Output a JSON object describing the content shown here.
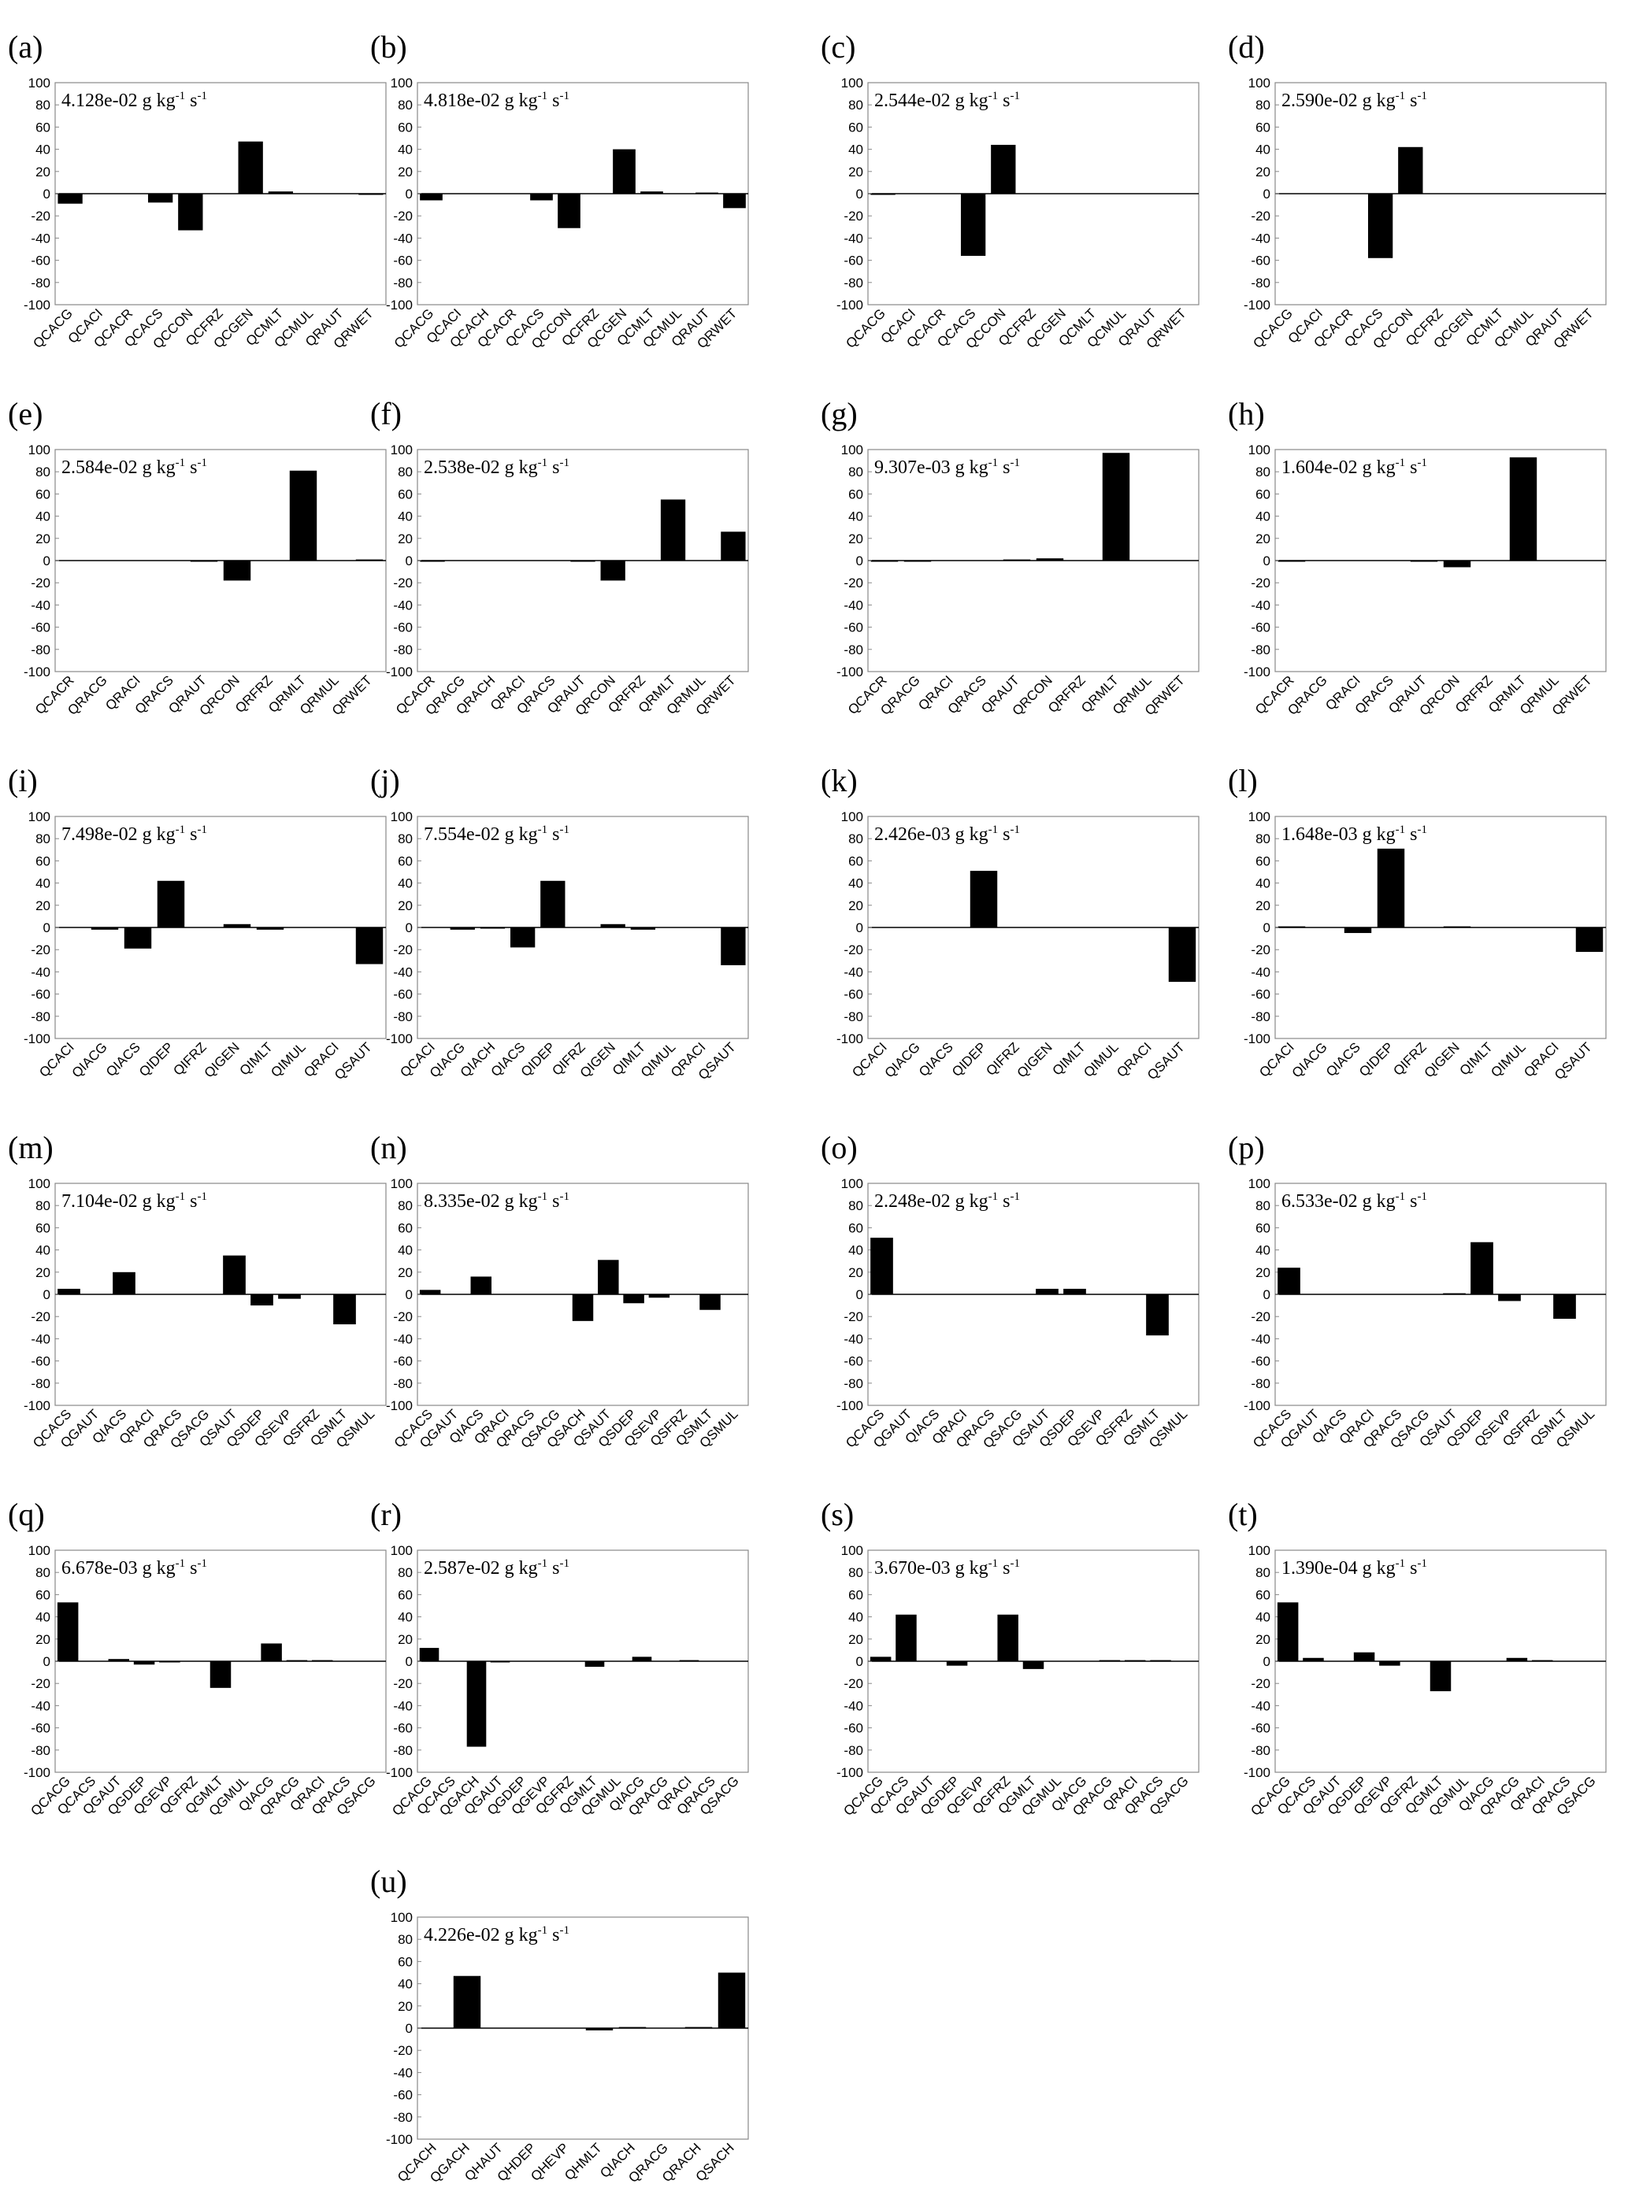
{
  "chart_data": [
    {
      "panel": "(a)",
      "type": "bar",
      "rate": "4.128e-02 g kg",
      "ylim": [
        -100,
        100
      ],
      "categories": [
        "QCACG",
        "QCACI",
        "QCACR",
        "QCACS",
        "QCCON",
        "QCFRZ",
        "QCGEN",
        "QCMLT",
        "QCMUL",
        "QRAUT",
        "QRWET"
      ],
      "values": [
        -9,
        0,
        0,
        -8,
        -33,
        0,
        47,
        2,
        0,
        0,
        -1
      ]
    },
    {
      "panel": "(b)",
      "type": "bar",
      "rate": "4.818e-02 g kg",
      "ylim": [
        -100,
        100
      ],
      "categories": [
        "QCACG",
        "QCACI",
        "QCACH",
        "QCACR",
        "QCACS",
        "QCCON",
        "QCFRZ",
        "QCGEN",
        "QCMLT",
        "QCMUL",
        "QRAUT",
        "QRWET"
      ],
      "values": [
        -6,
        0,
        0,
        0,
        -6,
        -31,
        0,
        40,
        2,
        0,
        1,
        -13
      ]
    },
    {
      "panel": "(c)",
      "type": "bar",
      "rate": "2.544e-02 g kg",
      "ylim": [
        -100,
        100
      ],
      "categories": [
        "QCACG",
        "QCACI",
        "QCACR",
        "QCACS",
        "QCCON",
        "QCFRZ",
        "QCGEN",
        "QCMLT",
        "QCMUL",
        "QRAUT",
        "QRWET"
      ],
      "values": [
        -1,
        0,
        0,
        -56,
        44,
        0,
        0,
        0,
        0,
        0,
        0
      ]
    },
    {
      "panel": "(d)",
      "type": "bar",
      "rate": "2.590e-02 g kg",
      "ylim": [
        -100,
        100
      ],
      "categories": [
        "QCACG",
        "QCACI",
        "QCACR",
        "QCACS",
        "QCCON",
        "QCFRZ",
        "QCGEN",
        "QCMLT",
        "QCMUL",
        "QRAUT",
        "QRWET"
      ],
      "values": [
        0,
        0,
        0,
        -58,
        42,
        0,
        0,
        0,
        0,
        0,
        0
      ]
    },
    {
      "panel": "(e)",
      "type": "bar",
      "rate": "2.584e-02 g kg",
      "ylim": [
        -100,
        100
      ],
      "categories": [
        "QCACR",
        "QRACG",
        "QRACI",
        "QRACS",
        "QRAUT",
        "QRCON",
        "QRFRZ",
        "QRMLT",
        "QRMUL",
        "QRWET"
      ],
      "values": [
        0,
        0,
        0,
        0,
        -1,
        -18,
        0,
        81,
        0,
        1
      ]
    },
    {
      "panel": "(f)",
      "type": "bar",
      "rate": "2.538e-02 g kg",
      "ylim": [
        -100,
        100
      ],
      "categories": [
        "QCACR",
        "QRACG",
        "QRACH",
        "QRACI",
        "QRACS",
        "QRAUT",
        "QRCON",
        "QRFRZ",
        "QRMLT",
        "QRMUL",
        "QRWET"
      ],
      "values": [
        -1,
        0,
        0,
        0,
        0,
        -1,
        -18,
        0,
        55,
        0,
        26
      ]
    },
    {
      "panel": "(g)",
      "type": "bar",
      "rate": "9.307e-03 g kg",
      "ylim": [
        -100,
        100
      ],
      "categories": [
        "QCACR",
        "QRACG",
        "QRACI",
        "QRACS",
        "QRAUT",
        "QRCON",
        "QRFRZ",
        "QRMLT",
        "QRMUL",
        "QRWET"
      ],
      "values": [
        -1,
        -1,
        0,
        0,
        1,
        2,
        0,
        97,
        0,
        0
      ]
    },
    {
      "panel": "(h)",
      "type": "bar",
      "rate": "1.604e-02 g kg",
      "ylim": [
        -100,
        100
      ],
      "categories": [
        "QCACR",
        "QRACG",
        "QRACI",
        "QRACS",
        "QRAUT",
        "QRCON",
        "QRFRZ",
        "QRMLT",
        "QRMUL",
        "QRWET"
      ],
      "values": [
        -1,
        0,
        0,
        0,
        -1,
        -6,
        0,
        93,
        0,
        0
      ]
    },
    {
      "panel": "(i)",
      "type": "bar",
      "rate": "7.498e-02 g kg",
      "ylim": [
        -100,
        100
      ],
      "categories": [
        "QCACI",
        "QIACG",
        "QIACS",
        "QIDEP",
        "QIFRZ",
        "QIGEN",
        "QIMLT",
        "QIMUL",
        "QRACI",
        "QSAUT"
      ],
      "values": [
        0,
        -2,
        -19,
        42,
        0,
        3,
        -2,
        0,
        0,
        -33
      ]
    },
    {
      "panel": "(j)",
      "type": "bar",
      "rate": "7.554e-02 g kg",
      "ylim": [
        -100,
        100
      ],
      "categories": [
        "QCACI",
        "QIACG",
        "QIACH",
        "QIACS",
        "QIDEP",
        "QIFRZ",
        "QIGEN",
        "QIMLT",
        "QIMUL",
        "QRACI",
        "QSAUT"
      ],
      "values": [
        0,
        -2,
        -1,
        -18,
        42,
        0,
        3,
        -2,
        0,
        0,
        -34
      ]
    },
    {
      "panel": "(k)",
      "type": "bar",
      "rate": "2.426e-03 g kg",
      "ylim": [
        -100,
        100
      ],
      "categories": [
        "QCACI",
        "QIACG",
        "QIACS",
        "QIDEP",
        "QIFRZ",
        "QIGEN",
        "QIMLT",
        "QIMUL",
        "QRACI",
        "QSAUT"
      ],
      "values": [
        0,
        0,
        0,
        51,
        0,
        0,
        0,
        0,
        0,
        -49
      ]
    },
    {
      "panel": "(l)",
      "type": "bar",
      "rate": "1.648e-03 g kg",
      "ylim": [
        -100,
        100
      ],
      "categories": [
        "QCACI",
        "QIACG",
        "QIACS",
        "QIDEP",
        "QIFRZ",
        "QIGEN",
        "QIMLT",
        "QIMUL",
        "QRACI",
        "QSAUT"
      ],
      "values": [
        1,
        0,
        -5,
        71,
        0,
        1,
        0,
        0,
        0,
        -22
      ]
    },
    {
      "panel": "(m)",
      "type": "bar",
      "rate": "7.104e-02 g kg",
      "ylim": [
        -100,
        100
      ],
      "categories": [
        "QCACS",
        "QGAUT",
        "QIACS",
        "QRACI",
        "QRACS",
        "QSACG",
        "QSAUT",
        "QSDEP",
        "QSEVP",
        "QSFRZ",
        "QSMLT",
        "QSMUL"
      ],
      "values": [
        5,
        0,
        20,
        0,
        0,
        0,
        35,
        -10,
        -4,
        0,
        -27,
        0
      ]
    },
    {
      "panel": "(n)",
      "type": "bar",
      "rate": "8.335e-02 g kg",
      "ylim": [
        -100,
        100
      ],
      "categories": [
        "QCACS",
        "QGAUT",
        "QIACS",
        "QRACI",
        "QRACS",
        "QSACG",
        "QSACH",
        "QSAUT",
        "QSDEP",
        "QSEVP",
        "QSFRZ",
        "QSMLT",
        "QSMUL"
      ],
      "values": [
        4,
        0,
        16,
        0,
        0,
        0,
        -24,
        31,
        -8,
        -3,
        0,
        -14,
        0
      ]
    },
    {
      "panel": "(o)",
      "type": "bar",
      "rate": "2.248e-02 g kg",
      "ylim": [
        -100,
        100
      ],
      "categories": [
        "QCACS",
        "QGAUT",
        "QIACS",
        "QRACI",
        "QRACS",
        "QSACG",
        "QSAUT",
        "QSDEP",
        "QSEVP",
        "QSFRZ",
        "QSMLT",
        "QSMUL"
      ],
      "values": [
        51,
        0,
        0,
        0,
        0,
        0,
        5,
        5,
        0,
        0,
        -37,
        0
      ]
    },
    {
      "panel": "(p)",
      "type": "bar",
      "rate": "6.533e-02 g kg",
      "ylim": [
        -100,
        100
      ],
      "categories": [
        "QCACS",
        "QGAUT",
        "QIACS",
        "QRACI",
        "QRACS",
        "QSACG",
        "QSAUT",
        "QSDEP",
        "QSEVP",
        "QSFRZ",
        "QSMLT",
        "QSMUL"
      ],
      "values": [
        24,
        0,
        0,
        0,
        0,
        0,
        1,
        47,
        -6,
        0,
        -22,
        0
      ]
    },
    {
      "panel": "(q)",
      "type": "bar",
      "rate": "6.678e-03 g kg",
      "ylim": [
        -100,
        100
      ],
      "categories": [
        "QCACG",
        "QCACS",
        "QGAUT",
        "QGDEP",
        "QGEVP",
        "QGFRZ",
        "QGMLT",
        "QGMUL",
        "QIACG",
        "QRACG",
        "QRACI",
        "QRACS",
        "QSACG"
      ],
      "values": [
        53,
        0,
        2,
        -3,
        -1,
        0,
        -24,
        0,
        16,
        1,
        1,
        0,
        0
      ]
    },
    {
      "panel": "(r)",
      "type": "bar",
      "rate": "2.587e-02 g kg",
      "ylim": [
        -100,
        100
      ],
      "categories": [
        "QCACG",
        "QCACS",
        "QGACH",
        "QGAUT",
        "QGDEP",
        "QGEVP",
        "QGFRZ",
        "QGMLT",
        "QGMUL",
        "QIACG",
        "QRACG",
        "QRACI",
        "QRACS",
        "QSACG"
      ],
      "values": [
        12,
        0,
        -77,
        -1,
        0,
        0,
        0,
        -5,
        0,
        4,
        0,
        1,
        0,
        0
      ]
    },
    {
      "panel": "(s)",
      "type": "bar",
      "rate": "3.670e-03 g kg",
      "ylim": [
        -100,
        100
      ],
      "categories": [
        "QCACG",
        "QCACS",
        "QGAUT",
        "QGDEP",
        "QGEVP",
        "QGFRZ",
        "QGMLT",
        "QGMUL",
        "QIACG",
        "QRACG",
        "QRACI",
        "QRACS",
        "QSACG"
      ],
      "values": [
        4,
        42,
        0,
        -4,
        0,
        42,
        -7,
        0,
        0,
        1,
        1,
        1,
        0
      ]
    },
    {
      "panel": "(t)",
      "type": "bar",
      "rate": "1.390e-04 g kg",
      "ylim": [
        -100,
        100
      ],
      "categories": [
        "QCACG",
        "QCACS",
        "QGAUT",
        "QGDEP",
        "QGEVP",
        "QGFRZ",
        "QGMLT",
        "QGMUL",
        "QIACG",
        "QRACG",
        "QRACI",
        "QRACS",
        "QSACG"
      ],
      "values": [
        53,
        3,
        0,
        8,
        -4,
        0,
        -27,
        0,
        0,
        3,
        1,
        0,
        0
      ]
    },
    {
      "panel": "(u)",
      "type": "bar",
      "rate": "4.226e-02 g kg",
      "ylim": [
        -100,
        100
      ],
      "categories": [
        "QCACH",
        "QGACH",
        "QHAUT",
        "QHDEP",
        "QHEVP",
        "QHMLT",
        "QIACH",
        "QRACG",
        "QRACH",
        "QSACH"
      ],
      "values": [
        0,
        47,
        0,
        0,
        0,
        -2,
        1,
        0,
        1,
        50
      ]
    }
  ]
}
